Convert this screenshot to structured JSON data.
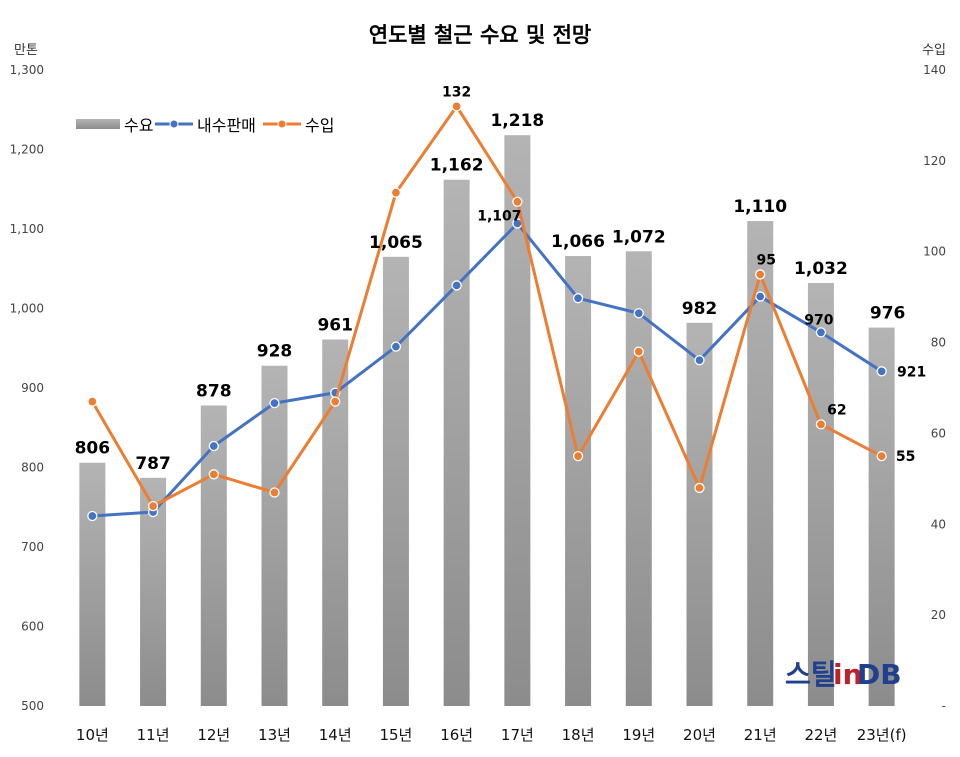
{
  "chart_data": {
    "type": "bar",
    "title": "연도별 철근 수요 및 전망",
    "y_left_label": "만톤",
    "y_right_label": "수입",
    "categories": [
      "10년",
      "11년",
      "12년",
      "13년",
      "14년",
      "15년",
      "16년",
      "17년",
      "18년",
      "19년",
      "20년",
      "21년",
      "22년",
      "23년(f)"
    ],
    "ylim_left": [
      500,
      1300
    ],
    "yticks_left": [
      "500",
      "600",
      "700",
      "800",
      "900",
      "1,000",
      "1,100",
      "1,200",
      "1,300"
    ],
    "ylim_right": [
      0,
      140
    ],
    "yticks_right": [
      "-",
      "20",
      "40",
      "60",
      "80",
      "100",
      "120",
      "140"
    ],
    "grid": false,
    "legend_position": "top-left",
    "series": [
      {
        "name": "수요",
        "kind": "bar",
        "axis": "left",
        "color": "#a6a6a6",
        "values": [
          806,
          787,
          878,
          928,
          961,
          1065,
          1162,
          1218,
          1066,
          1072,
          982,
          1110,
          1032,
          976
        ],
        "labels": [
          "806",
          "787",
          "878",
          "928",
          "961",
          "1,065",
          "1,162",
          "1,218",
          "1,066",
          "1,072",
          "982",
          "1,110",
          "1,032",
          "976"
        ],
        "highlight_color": "#b01e23",
        "highlight_indices": [
          7,
          12,
          13
        ]
      },
      {
        "name": "내수판매",
        "kind": "line",
        "axis": "left",
        "color": "#4472c4",
        "values": [
          739,
          744,
          827,
          881,
          894,
          952,
          1029,
          1107,
          1013,
          994,
          935,
          1015,
          970,
          921
        ],
        "label_indices": [
          7,
          12,
          13
        ],
        "labels": [
          "1,107",
          "970",
          "921"
        ]
      },
      {
        "name": "수입",
        "kind": "line",
        "axis": "right",
        "color": "#ed7d31",
        "values": [
          67,
          44,
          51,
          47,
          67,
          113,
          132,
          111,
          55,
          78,
          48,
          95,
          62,
          55
        ],
        "label_indices": [
          6,
          11,
          12,
          13
        ],
        "labels": [
          "132",
          "95",
          "62",
          "55"
        ]
      }
    ]
  },
  "logo": {
    "text_a": "스틸",
    "text_b": "in",
    "text_c": "DB"
  }
}
